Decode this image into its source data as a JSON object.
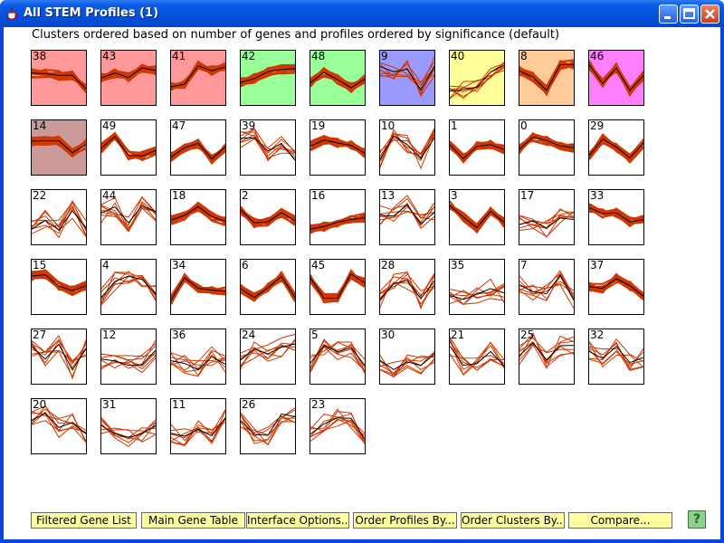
{
  "window": {
    "title": "All STEM Profiles (1)",
    "buttons": {
      "minimize": "minimize",
      "maximize": "maximize",
      "close": "close"
    }
  },
  "heading": "Clusters ordered based on number of genes and profiles ordered by significance (default)",
  "colors": {
    "line": "#d03800",
    "pink": "#ff9999",
    "green": "#99ff99",
    "blue": "#9999ff",
    "yellow": "#ffff99",
    "orange": "#ffcc99",
    "magenta": "#ff80ff",
    "mauve": "#cc9999",
    "white": "#ffffff"
  },
  "profiles": [
    {
      "id": "38",
      "bg": "pink",
      "heavy": true
    },
    {
      "id": "43",
      "bg": "pink",
      "heavy": true
    },
    {
      "id": "41",
      "bg": "pink",
      "heavy": true
    },
    {
      "id": "42",
      "bg": "green",
      "heavy": true
    },
    {
      "id": "48",
      "bg": "green",
      "heavy": true
    },
    {
      "id": "9",
      "bg": "blue",
      "heavy": false
    },
    {
      "id": "40",
      "bg": "yellow",
      "heavy": false
    },
    {
      "id": "8",
      "bg": "orange",
      "heavy": true
    },
    {
      "id": "46",
      "bg": "magenta",
      "heavy": true
    },
    {
      "id": "14",
      "bg": "mauve",
      "heavy": true
    },
    {
      "id": "49",
      "bg": "white",
      "heavy": true
    },
    {
      "id": "47",
      "bg": "white",
      "heavy": true
    },
    {
      "id": "39",
      "bg": "white",
      "heavy": false
    },
    {
      "id": "19",
      "bg": "white",
      "heavy": true
    },
    {
      "id": "10",
      "bg": "white",
      "heavy": false
    },
    {
      "id": "1",
      "bg": "white",
      "heavy": true
    },
    {
      "id": "0",
      "bg": "white",
      "heavy": true
    },
    {
      "id": "29",
      "bg": "white",
      "heavy": true
    },
    {
      "id": "22",
      "bg": "white",
      "heavy": false
    },
    {
      "id": "44",
      "bg": "white",
      "heavy": false
    },
    {
      "id": "18",
      "bg": "white",
      "heavy": true
    },
    {
      "id": "2",
      "bg": "white",
      "heavy": true
    },
    {
      "id": "16",
      "bg": "white",
      "heavy": true
    },
    {
      "id": "13",
      "bg": "white",
      "heavy": false
    },
    {
      "id": "3",
      "bg": "white",
      "heavy": true
    },
    {
      "id": "17",
      "bg": "white",
      "heavy": false
    },
    {
      "id": "33",
      "bg": "white",
      "heavy": true
    },
    {
      "id": "15",
      "bg": "white",
      "heavy": true
    },
    {
      "id": "4",
      "bg": "white",
      "heavy": false
    },
    {
      "id": "34",
      "bg": "white",
      "heavy": true
    },
    {
      "id": "6",
      "bg": "white",
      "heavy": true
    },
    {
      "id": "45",
      "bg": "white",
      "heavy": true
    },
    {
      "id": "28",
      "bg": "white",
      "heavy": false
    },
    {
      "id": "35",
      "bg": "white",
      "heavy": false
    },
    {
      "id": "7",
      "bg": "white",
      "heavy": false
    },
    {
      "id": "37",
      "bg": "white",
      "heavy": true
    },
    {
      "id": "27",
      "bg": "white",
      "heavy": false
    },
    {
      "id": "12",
      "bg": "white",
      "heavy": false
    },
    {
      "id": "36",
      "bg": "white",
      "heavy": false
    },
    {
      "id": "24",
      "bg": "white",
      "heavy": false
    },
    {
      "id": "5",
      "bg": "white",
      "heavy": false
    },
    {
      "id": "30",
      "bg": "white",
      "heavy": false
    },
    {
      "id": "21",
      "bg": "white",
      "heavy": false
    },
    {
      "id": "25",
      "bg": "white",
      "heavy": false
    },
    {
      "id": "32",
      "bg": "white",
      "heavy": false
    },
    {
      "id": "20",
      "bg": "white",
      "heavy": false
    },
    {
      "id": "31",
      "bg": "white",
      "heavy": false
    },
    {
      "id": "11",
      "bg": "white",
      "heavy": false
    },
    {
      "id": "26",
      "bg": "white",
      "heavy": false
    },
    {
      "id": "23",
      "bg": "white",
      "heavy": false
    }
  ],
  "buttons": {
    "filtered_gene_list": "Filtered Gene List",
    "main_gene_table": "Main Gene Table",
    "interface_options": "Interface Options...",
    "order_profiles_by": "Order Profiles By...",
    "order_clusters_by": "Order Clusters By...",
    "compare": "Compare...",
    "help": "?"
  },
  "icons": {
    "app": "java-cup-icon",
    "help": "help-question-icon"
  }
}
